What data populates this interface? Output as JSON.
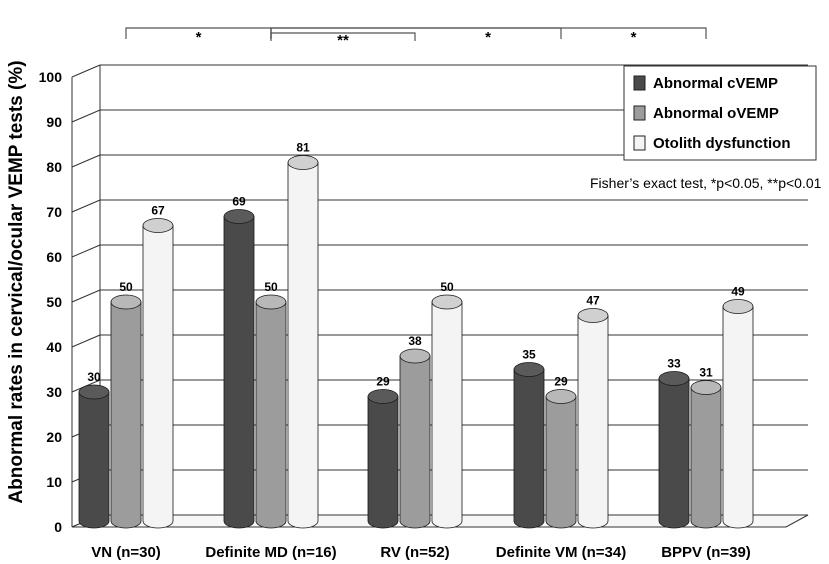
{
  "chart_data": {
    "type": "bar",
    "title": "",
    "xlabel": "",
    "ylabel": "Abnormal rates in cervical/ocular VEMP tests (%)",
    "ylim": [
      0,
      100
    ],
    "yticks": [
      "0",
      "10",
      "20",
      "30",
      "40",
      "50",
      "60",
      "70",
      "80",
      "90",
      "100"
    ],
    "categories": [
      "VN (n=30)",
      "Definite MD (n=16)",
      "RV (n=52)",
      "Definite VM (n=34)",
      "BPPV (n=39)"
    ],
    "series": [
      {
        "name": "Abnormal cVEMP",
        "color": "#4a4a4a",
        "values": [
          30,
          69,
          29,
          35,
          33
        ]
      },
      {
        "name": "Abnormal oVEMP",
        "color": "#9c9c9c",
        "values": [
          50,
          50,
          38,
          29,
          31
        ]
      },
      {
        "name": "Otolith dysfunction",
        "color": "#f4f4f4",
        "values": [
          67,
          81,
          50,
          47,
          49
        ]
      }
    ],
    "legend_position": "top-right",
    "annotation": "Fisher’s exact test, *p<0.05, **p<0.01",
    "significance": [
      {
        "from": "VN (n=30)",
        "to": "Definite MD (n=16)",
        "label": "*"
      },
      {
        "from": "Definite MD (n=16)",
        "to": "RV (n=52)",
        "label": "**"
      },
      {
        "from": "Definite MD (n=16)",
        "to": "Definite VM (n=34)",
        "label": "*"
      },
      {
        "from": "Definite MD (n=16)",
        "to": "BPPV (n=39)",
        "label": "*"
      }
    ]
  }
}
